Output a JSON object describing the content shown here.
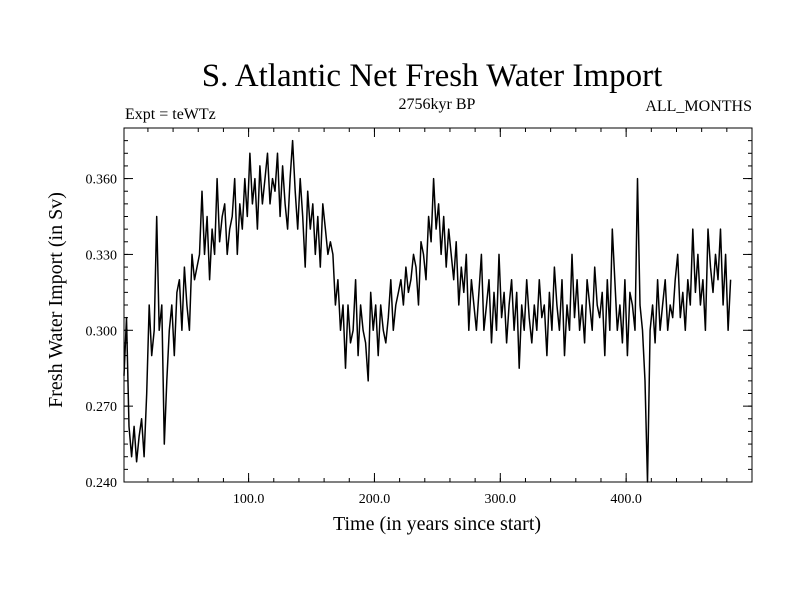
{
  "chart_data": {
    "type": "line",
    "title": "S. Atlantic Net Fresh Water Import",
    "subtitle_left": "Expt = teWTz",
    "subtitle_center": "2756kyr BP",
    "subtitle_right": "ALL_MONTHS",
    "xlabel": "Time (in years since start)",
    "ylabel": "Fresh Water Import (in Sv)",
    "xlim": [
      1,
      500
    ],
    "ylim": [
      0.24,
      0.38
    ],
    "x_ticks": [
      100,
      200,
      300,
      400
    ],
    "x_tick_labels": [
      "100.0",
      "200.0",
      "300.0",
      "400.0"
    ],
    "y_ticks": [
      0.24,
      0.27,
      0.3,
      0.33,
      0.36
    ],
    "y_tick_labels": [
      "0.240",
      "0.270",
      "0.300",
      "0.330",
      "0.360"
    ],
    "series": [
      {
        "name": "Fresh Water Import",
        "x_start": 1,
        "x_step": 2,
        "values": [
          0.282,
          0.305,
          0.262,
          0.25,
          0.262,
          0.248,
          0.258,
          0.265,
          0.25,
          0.275,
          0.31,
          0.29,
          0.3,
          0.345,
          0.3,
          0.31,
          0.255,
          0.28,
          0.3,
          0.31,
          0.29,
          0.315,
          0.32,
          0.3,
          0.325,
          0.31,
          0.3,
          0.33,
          0.32,
          0.325,
          0.33,
          0.355,
          0.33,
          0.345,
          0.32,
          0.34,
          0.33,
          0.36,
          0.335,
          0.345,
          0.35,
          0.33,
          0.34,
          0.345,
          0.36,
          0.33,
          0.35,
          0.34,
          0.36,
          0.345,
          0.37,
          0.35,
          0.36,
          0.34,
          0.365,
          0.35,
          0.36,
          0.37,
          0.35,
          0.36,
          0.355,
          0.37,
          0.345,
          0.365,
          0.35,
          0.34,
          0.36,
          0.375,
          0.355,
          0.34,
          0.36,
          0.345,
          0.325,
          0.355,
          0.34,
          0.35,
          0.33,
          0.345,
          0.325,
          0.35,
          0.34,
          0.33,
          0.335,
          0.33,
          0.31,
          0.32,
          0.3,
          0.31,
          0.285,
          0.31,
          0.295,
          0.3,
          0.32,
          0.29,
          0.31,
          0.3,
          0.295,
          0.28,
          0.315,
          0.3,
          0.31,
          0.29,
          0.31,
          0.3,
          0.295,
          0.305,
          0.32,
          0.3,
          0.31,
          0.315,
          0.32,
          0.31,
          0.325,
          0.315,
          0.32,
          0.33,
          0.325,
          0.31,
          0.335,
          0.33,
          0.32,
          0.345,
          0.335,
          0.36,
          0.34,
          0.35,
          0.33,
          0.345,
          0.325,
          0.34,
          0.33,
          0.32,
          0.335,
          0.31,
          0.325,
          0.315,
          0.33,
          0.3,
          0.32,
          0.31,
          0.3,
          0.315,
          0.33,
          0.3,
          0.31,
          0.32,
          0.295,
          0.315,
          0.3,
          0.33,
          0.305,
          0.315,
          0.295,
          0.31,
          0.32,
          0.3,
          0.315,
          0.285,
          0.31,
          0.3,
          0.32,
          0.305,
          0.295,
          0.31,
          0.3,
          0.32,
          0.305,
          0.31,
          0.29,
          0.315,
          0.3,
          0.325,
          0.31,
          0.3,
          0.32,
          0.29,
          0.31,
          0.3,
          0.33,
          0.305,
          0.32,
          0.3,
          0.31,
          0.295,
          0.32,
          0.31,
          0.3,
          0.325,
          0.31,
          0.305,
          0.315,
          0.29,
          0.32,
          0.3,
          0.34,
          0.32,
          0.3,
          0.31,
          0.295,
          0.32,
          0.29,
          0.315,
          0.31,
          0.3,
          0.36,
          0.31,
          0.3,
          0.28,
          0.24,
          0.3,
          0.31,
          0.295,
          0.32,
          0.3,
          0.31,
          0.32,
          0.3,
          0.31,
          0.305,
          0.32,
          0.33,
          0.305,
          0.315,
          0.3,
          0.32,
          0.31,
          0.34,
          0.315,
          0.33,
          0.31,
          0.32,
          0.3,
          0.34,
          0.325,
          0.315,
          0.33,
          0.32,
          0.34,
          0.31,
          0.33,
          0.3,
          0.32
        ]
      }
    ]
  }
}
